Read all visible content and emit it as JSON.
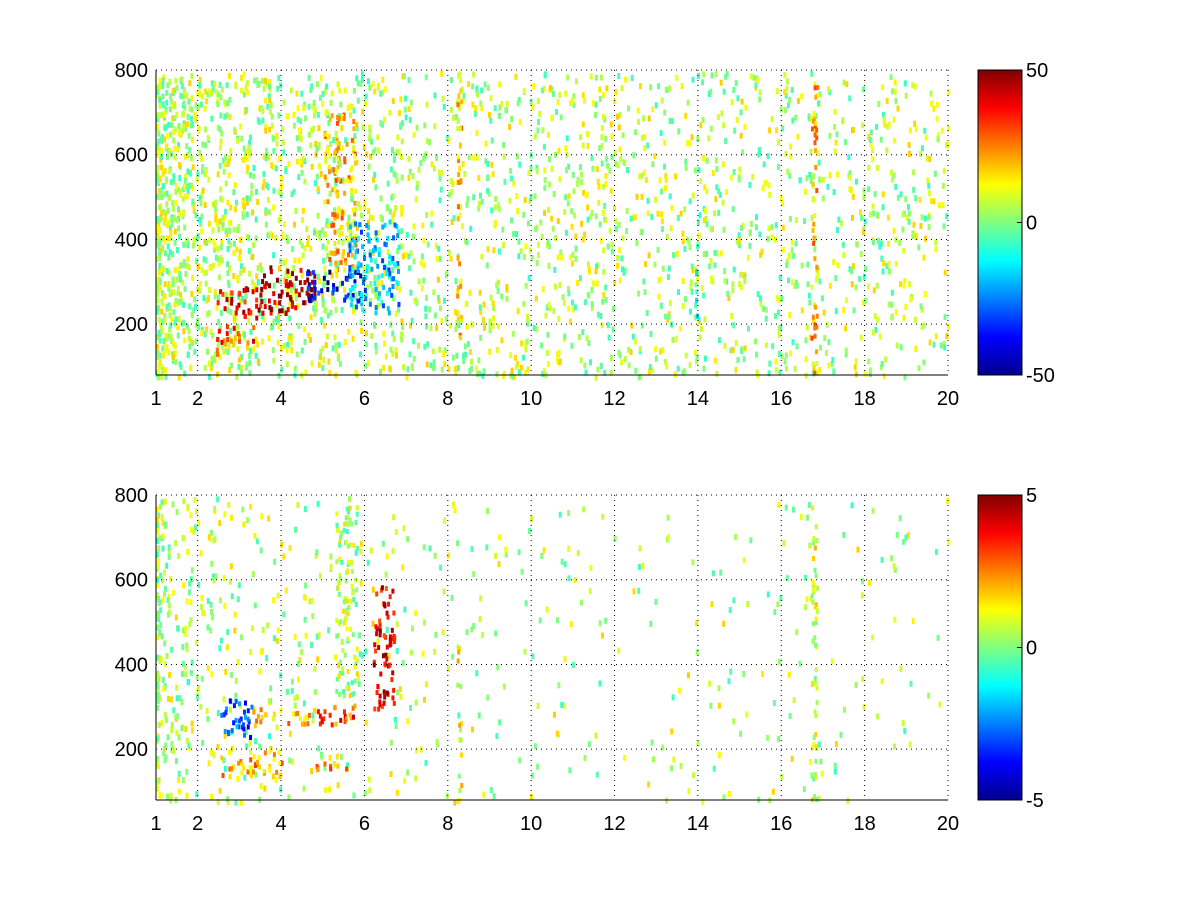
{
  "chart_data": [
    {
      "type": "heatmap",
      "title": "",
      "xlabel": "",
      "ylabel": "",
      "xlim": [
        1,
        20
      ],
      "ylim": [
        80,
        800
      ],
      "x_ticks": [
        1,
        2,
        4,
        6,
        8,
        10,
        12,
        14,
        16,
        18,
        20
      ],
      "x_tick_labels": [
        "1",
        "2",
        "4",
        "6",
        "8",
        "10",
        "12",
        "14",
        "16",
        "18",
        "20"
      ],
      "y_ticks": [
        200,
        400,
        600,
        800
      ],
      "y_tick_labels": [
        "200",
        "400",
        "600",
        "800"
      ],
      "grid": true,
      "colormap": "jet",
      "colorbar": {
        "min": -50,
        "max": 50,
        "ticks": [
          50,
          0,
          -50
        ],
        "tick_labels": [
          "50",
          "0",
          "-50"
        ]
      },
      "features": [
        {
          "x_range": [
            2.3,
            3.0
          ],
          "y_range": [
            110,
            160
          ],
          "value": 15
        },
        {
          "x_range": [
            2.4,
            3.4
          ],
          "y_range": [
            160,
            200
          ],
          "value": 30
        },
        {
          "x_range": [
            2.4,
            3.5
          ],
          "y_range": [
            220,
            290
          ],
          "value": 40
        },
        {
          "x_range": [
            3.5,
            4.8
          ],
          "y_range": [
            230,
            340
          ],
          "value": 45
        },
        {
          "x_range": [
            4.6,
            5.9
          ],
          "y_range": [
            260,
            330
          ],
          "value": -40
        },
        {
          "x_range": [
            5.0,
            5.8
          ],
          "y_range": [
            330,
            700
          ],
          "value": 20
        },
        {
          "x_range": [
            5.6,
            6.8
          ],
          "y_range": [
            230,
            450
          ],
          "value": -20
        },
        {
          "x_range": [
            8.2,
            8.3
          ],
          "y_range": [
            80,
            800
          ],
          "value": 18
        },
        {
          "x_range": [
            16.7,
            16.85
          ],
          "y_range": [
            80,
            780
          ],
          "value": 20
        },
        {
          "x_range": [
            13.9,
            14.0
          ],
          "y_range": [
            200,
            400
          ],
          "value": -12
        }
      ],
      "colorbar_ticks": [
        "50",
        "0",
        "-50"
      ]
    },
    {
      "type": "heatmap",
      "title": "",
      "xlabel": "",
      "ylabel": "",
      "xlim": [
        1,
        20
      ],
      "ylim": [
        80,
        800
      ],
      "x_ticks": [
        1,
        2,
        4,
        6,
        8,
        10,
        12,
        14,
        16,
        18,
        20
      ],
      "x_tick_labels": [
        "1",
        "2",
        "4",
        "6",
        "8",
        "10",
        "12",
        "14",
        "16",
        "18",
        "20"
      ],
      "y_ticks": [
        200,
        400,
        600,
        800
      ],
      "y_tick_labels": [
        "200",
        "400",
        "600",
        "800"
      ],
      "grid": true,
      "colormap": "jet",
      "colorbar": {
        "min": -5,
        "max": 5,
        "ticks": [
          5,
          0,
          -5
        ],
        "tick_labels": [
          "5",
          "0",
          "-5"
        ]
      },
      "features": [
        {
          "x_range": [
            2.5,
            3.3
          ],
          "y_range": [
            230,
            320
          ],
          "value": -3
        },
        {
          "x_range": [
            3.3,
            4.8
          ],
          "y_range": [
            260,
            300
          ],
          "value": 2
        },
        {
          "x_range": [
            4.8,
            5.8
          ],
          "y_range": [
            260,
            310
          ],
          "value": 3
        },
        {
          "x_range": [
            4.8,
            5.8
          ],
          "y_range": [
            150,
            175
          ],
          "value": 2.5
        },
        {
          "x_range": [
            2.5,
            4.0
          ],
          "y_range": [
            140,
            200
          ],
          "value": 2
        },
        {
          "x_range": [
            6.2,
            6.7
          ],
          "y_range": [
            300,
            600
          ],
          "value": 4
        },
        {
          "x_range": [
            5.3,
            5.8
          ],
          "y_range": [
            330,
            780
          ],
          "value": 0.5
        },
        {
          "x_range": [
            8.2,
            8.3
          ],
          "y_range": [
            80,
            470
          ],
          "value": 1
        },
        {
          "x_range": [
            16.7,
            16.85
          ],
          "y_range": [
            80,
            780
          ],
          "value": 0.8
        }
      ],
      "colorbar_ticks": [
        "5",
        "0",
        "-5"
      ]
    }
  ]
}
